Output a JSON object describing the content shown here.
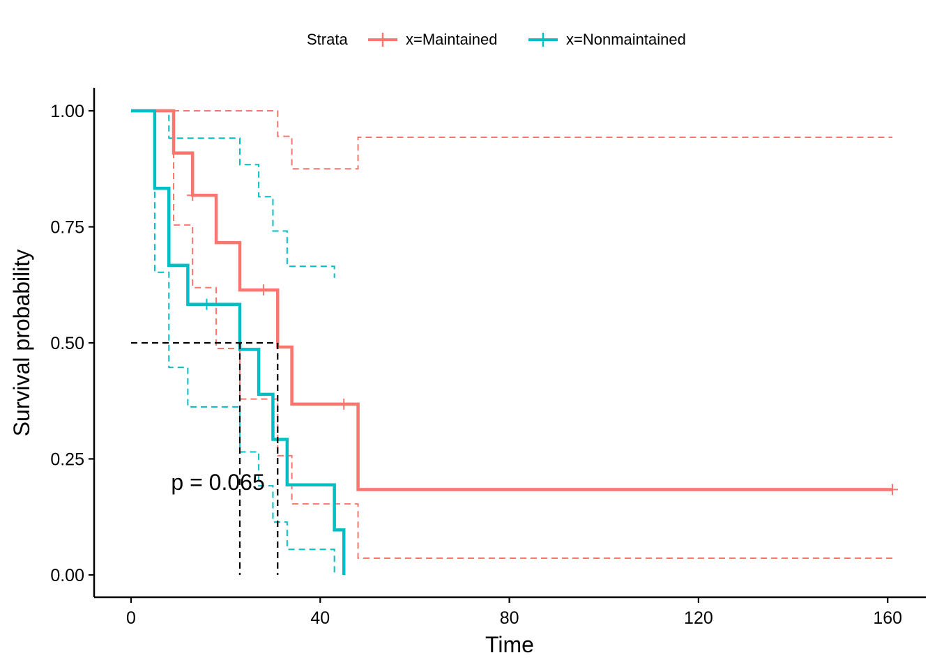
{
  "chart_data": {
    "type": "line",
    "subtype": "kaplan-meier step",
    "title": "",
    "xlabel": "Time",
    "ylabel": "Survival probability",
    "xlim": [
      0,
      161
    ],
    "ylim": [
      0,
      1
    ],
    "x_ticks": [
      0,
      40,
      80,
      120,
      160
    ],
    "x_tick_labels": [
      "0",
      "40",
      "80",
      "120",
      "160"
    ],
    "y_ticks": [
      0,
      0.25,
      0.5,
      0.75,
      1
    ],
    "y_tick_labels": [
      "0.00",
      "0.25",
      "0.50",
      "0.75",
      "1.00"
    ],
    "grid": false,
    "legend": {
      "title": "Strata",
      "position": "top",
      "entries": [
        "x=Maintained",
        "x=Nonmaintained"
      ]
    },
    "annotation": "p = 0.065",
    "annotation_pos": [
      12,
      0.2
    ],
    "median_survival": [
      {
        "series": "x=Nonmaintained",
        "time": 23
      },
      {
        "series": "x=Maintained",
        "time": 31
      }
    ],
    "series": [
      {
        "name": "x=Maintained",
        "color": "#F8766D",
        "time": [
          0,
          9,
          13,
          18,
          23,
          31,
          34,
          48,
          161
        ],
        "surv": [
          1.0,
          0.909,
          0.818,
          0.716,
          0.614,
          0.491,
          0.368,
          0.184,
          0.184
        ],
        "upper": [
          1.0,
          1.0,
          1.0,
          1.0,
          1.0,
          0.945,
          0.875,
          0.943,
          0.943
        ],
        "lower": [
          1.0,
          0.754,
          0.619,
          0.488,
          0.379,
          0.257,
          0.153,
          0.036,
          0.036
        ],
        "censor_times": [
          13,
          28,
          45,
          161
        ],
        "censor_surv": [
          0.818,
          0.614,
          0.368,
          0.184
        ]
      },
      {
        "name": "x=Nonmaintained",
        "color": "#00BFC4",
        "time": [
          0,
          5,
          8,
          12,
          23,
          27,
          30,
          33,
          43,
          45
        ],
        "surv": [
          1.0,
          0.833,
          0.667,
          0.583,
          0.486,
          0.389,
          0.292,
          0.194,
          0.097,
          0.0
        ],
        "upper": [
          1.0,
          1.0,
          0.941,
          0.941,
          0.884,
          0.815,
          0.741,
          0.665,
          0.64,
          null
        ],
        "lower": [
          1.0,
          0.652,
          0.447,
          0.362,
          0.265,
          0.192,
          0.114,
          0.055,
          0.0,
          null
        ],
        "censor_times": [
          16
        ],
        "censor_surv": [
          0.583
        ]
      }
    ]
  }
}
